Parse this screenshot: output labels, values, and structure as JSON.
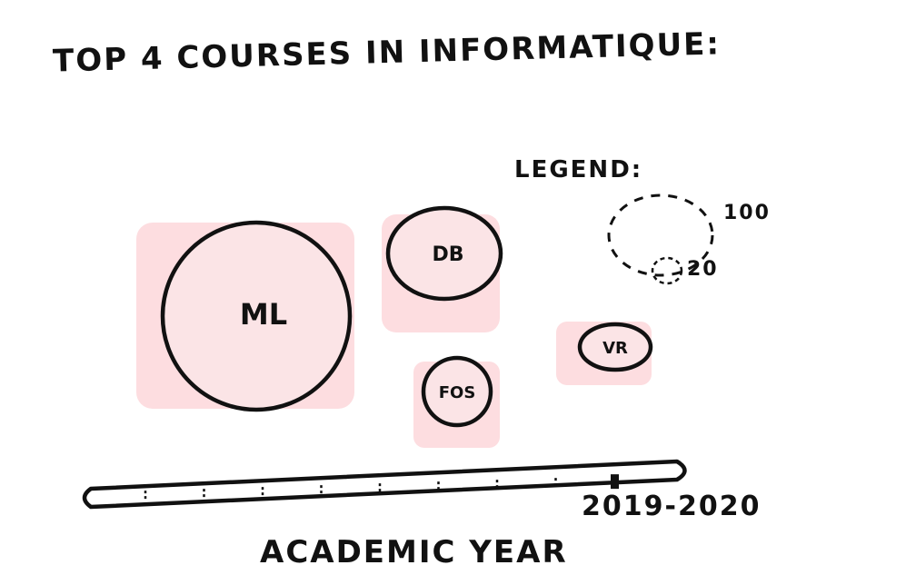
{
  "title": "TOP 4 COURSES IN INFORMATIQUE:",
  "legend": {
    "title": "LEGEND:",
    "size_large": "100",
    "size_small": "20"
  },
  "colors": {
    "bubble_fill": "#fbe4e6",
    "shadow_fill": "#fddde0",
    "stroke": "#111111"
  },
  "courses": [
    {
      "label": "ML",
      "value": 100
    },
    {
      "label": "DB",
      "value": 40
    },
    {
      "label": "FOS",
      "value": 18
    },
    {
      "label": "VR",
      "value": 17
    }
  ],
  "timeline": {
    "selected_label": "2019-2020",
    "title": "ACADEMIC YEAR",
    "tick_count": 9,
    "selected_index": 8
  }
}
